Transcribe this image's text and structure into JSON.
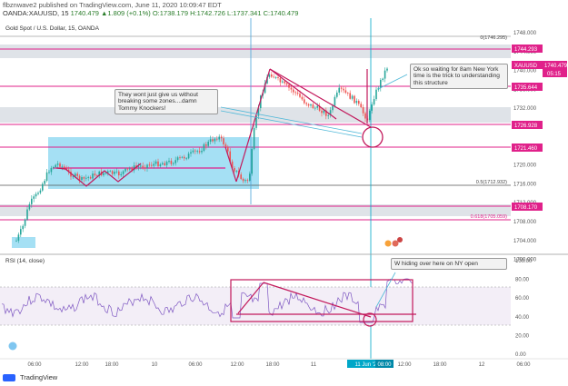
{
  "header": {
    "publish_line": "flbznwave2 published on TradingView.com, June 11, 2020 10:09:47 EDT",
    "symbol_line": "OANDA:XAUUSD, 15",
    "price_line": "1740.479 ▲1.809 (+0.1%) O:1738.179 H:1742.726 L:1737.341 C:1740.479",
    "chart_title": "Gold Spot / U.S. Dollar, 15, OANDA"
  },
  "price_axis": {
    "ticks": [
      "1748.000",
      "1744.000",
      "1740.000",
      "1736.000",
      "1732.000",
      "1728.000",
      "1724.000",
      "1720.000",
      "1716.000",
      "1712.000",
      "1708.000",
      "1704.000",
      "1700.000"
    ],
    "labels": {
      "l1744": "1744.293",
      "symbol": "XAUUSD",
      "current": "1740.479",
      "countdown": "05:15",
      "l1735": "1735.644",
      "l1726": "1726.928",
      "l1721": "1721.460",
      "l1708": "1708.170"
    },
    "fib": {
      "f0": "0(1746.295)",
      "f05": "0.5(1712.932)",
      "f0618": "0.618(1705.059)"
    }
  },
  "rsi": {
    "title": "RSI (14, close)",
    "ticks": [
      "100.00",
      "80.00",
      "60.00",
      "40.00",
      "20.00",
      "0.00"
    ]
  },
  "time_axis": {
    "labels": [
      "06:00",
      "12:00",
      "18:00",
      "10",
      "06:00",
      "12:00",
      "18:00",
      "11",
      "11 Jun '20",
      "08:00",
      "12:00",
      "18:00",
      "12",
      "06:00"
    ]
  },
  "notes": {
    "note1": "They wont just give us without breaking some zones....damn Tommy Knockers!",
    "note2": "Ok so waiting for 8am New York time is the trick to understanding this structure",
    "note3": "W hiding over here on NY open"
  },
  "footer": {
    "brand": "TradingView"
  },
  "colors": {
    "accent": "#e0218a",
    "zone": "#7fd3f0",
    "up": "#26a69a",
    "down": "#ef5350",
    "line": "#00a7c8"
  }
}
